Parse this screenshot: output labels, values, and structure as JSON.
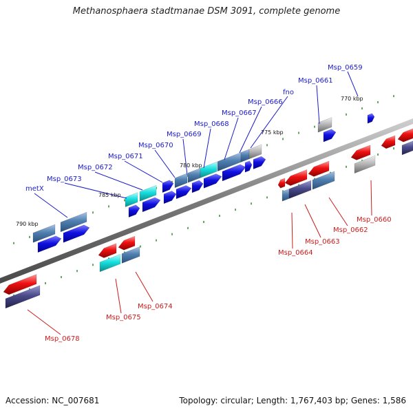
{
  "header": {
    "title": "Methanosphaera stadtmanae DSM 3091, complete genome"
  },
  "footer": {
    "accession": "Accession: NC_007681",
    "summary": "Topology: circular; Length: 1,767,403 bp; Genes: 1,586"
  },
  "colors": {
    "forward_dark": "#1010e0",
    "reverse_red": "#ee1111",
    "steel_blue": "#4f7fb0",
    "cyan": "#18dede",
    "grey": "#b8b8b8",
    "slate": "#4a4a8a",
    "label_top": "#1a1acc",
    "label_bottom": "#cc1a1a",
    "tick_green": "#2a8a2a"
  },
  "scale_labels": [
    "770 kbp",
    "775 kbp",
    "780 kbp",
    "785 kbp",
    "790 kbp"
  ],
  "top_labels": [
    "Msp_0659",
    "Msp_0661",
    "fno",
    "Msp_0666",
    "Msp_0667",
    "Msp_0668",
    "Msp_0669",
    "Msp_0670",
    "Msp_0671",
    "Msp_0672",
    "Msp_0673",
    "metX"
  ],
  "bottom_labels": [
    "Msp_0660",
    "Msp_0662",
    "Msp_0663",
    "Msp_0664",
    "Msp_0674",
    "Msp_0675",
    "Msp_0678"
  ]
}
